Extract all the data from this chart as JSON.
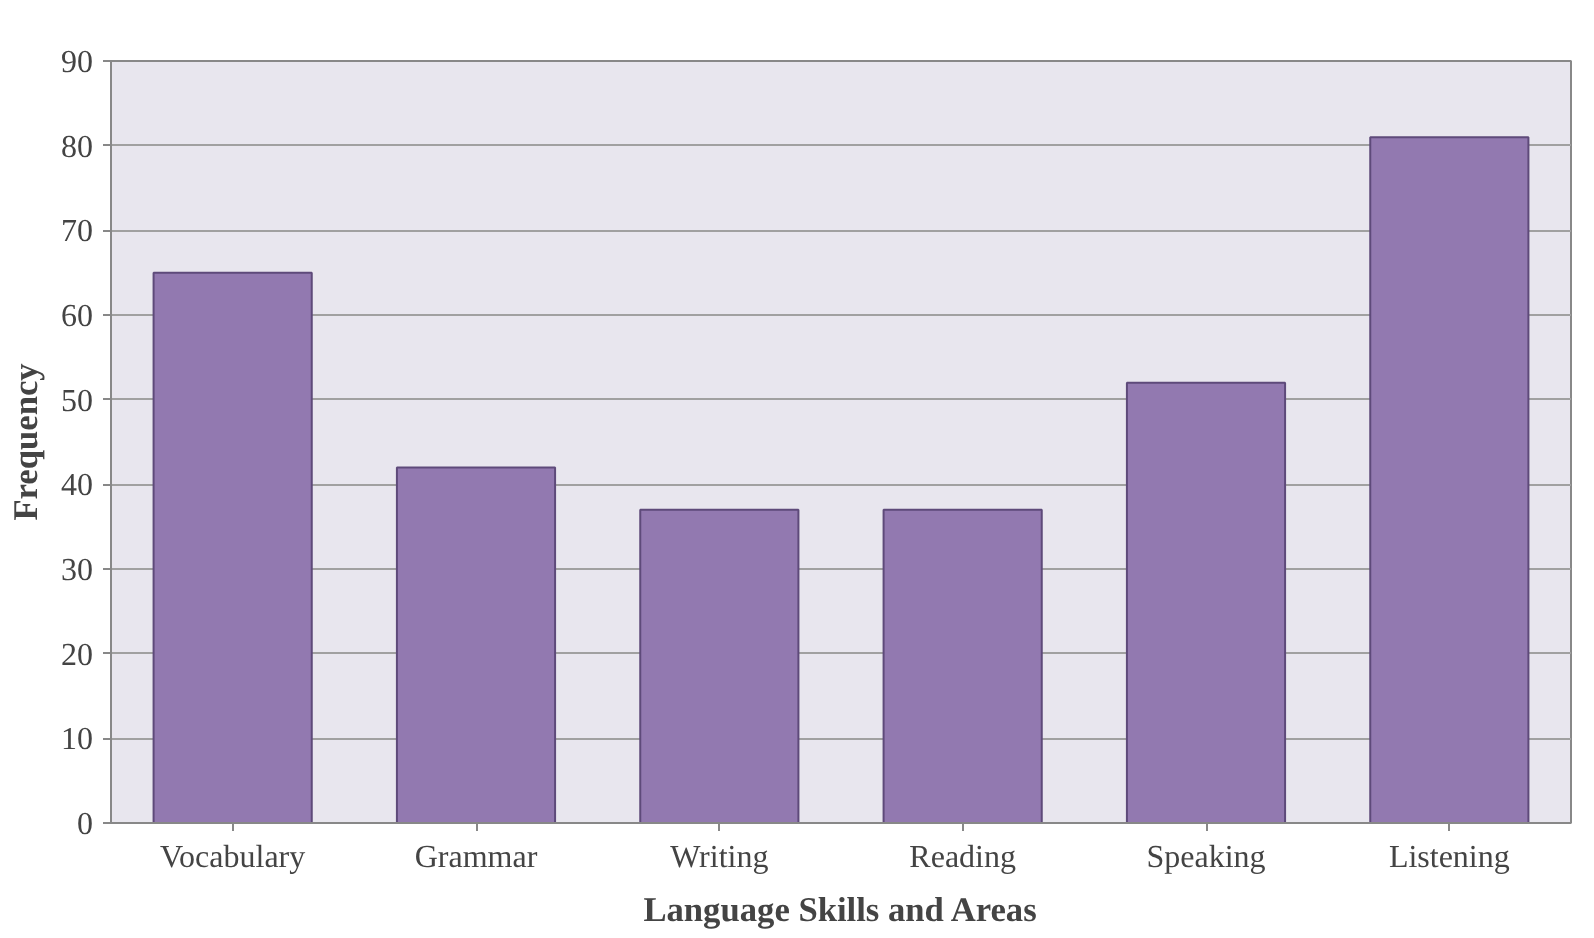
{
  "chart_data": {
    "type": "bar",
    "xlabel": "Language Skills and Areas",
    "ylabel": "Frequency",
    "categories": [
      "Vocabulary",
      "Grammar",
      "Writing",
      "Reading",
      "Speaking",
      "Listening"
    ],
    "values": [
      65,
      42,
      37,
      37,
      52,
      81
    ],
    "color": "#9279b0",
    "ylim": [
      0,
      90
    ],
    "yticks": [
      0,
      10,
      20,
      30,
      40,
      50,
      60,
      70,
      80,
      90
    ],
    "grid": "y"
  }
}
